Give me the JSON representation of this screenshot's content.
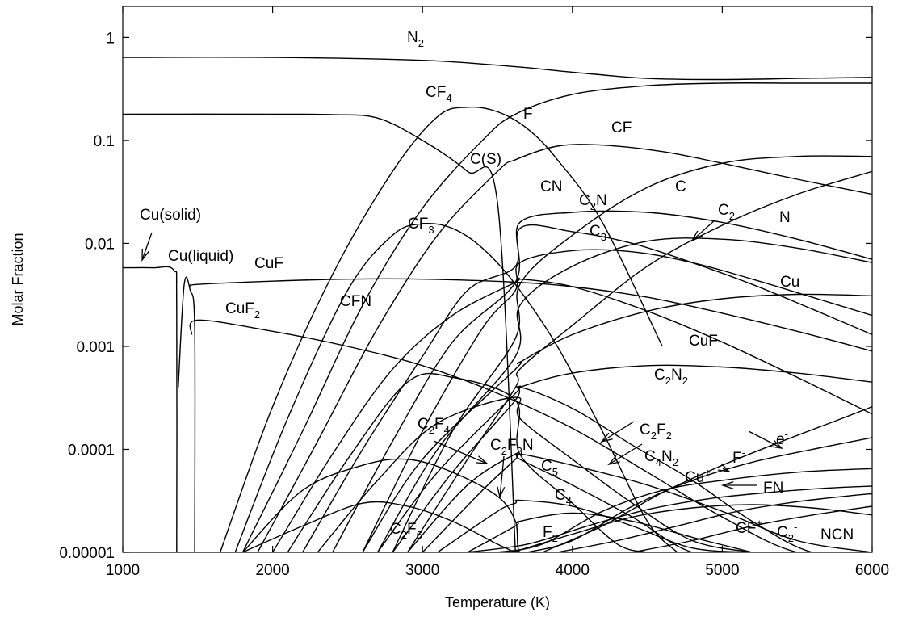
{
  "chart_data": {
    "type": "line",
    "title": "",
    "xlabel": "Temperature (K)",
    "ylabel": "Molar Fraction",
    "xscale": "linear",
    "yscale": "log",
    "xlim": [
      1000,
      6000
    ],
    "ylim": [
      1e-05,
      2
    ],
    "grid": false,
    "legend": "none (curves labelled directly)",
    "x_ticks": [
      1000,
      2000,
      3000,
      4000,
      5000,
      6000
    ],
    "x_tick_labels": [
      "1000",
      "2000",
      "3000",
      "4000",
      "5000",
      "6000"
    ],
    "y_ticks": [
      1e-05,
      0.0001,
      0.001,
      0.01,
      0.1,
      1
    ],
    "y_tick_labels": [
      "0.00001",
      "0.0001",
      "0.001",
      "0.01",
      "0.1",
      "1"
    ],
    "labels": [
      {
        "text": "N",
        "sub": "2"
      },
      {
        "text": "CF",
        "sub": "4"
      },
      {
        "text": "F"
      },
      {
        "text": "CF"
      },
      {
        "text": "C(S)"
      },
      {
        "text": "CN"
      },
      {
        "text": "C",
        "sub": "2",
        "after": "N"
      },
      {
        "text": "C"
      },
      {
        "text": "C",
        "sub": "2"
      },
      {
        "text": "N"
      },
      {
        "text": "CF",
        "sub": "3"
      },
      {
        "text": "C",
        "sub": "3"
      },
      {
        "text": "Cu(solid)"
      },
      {
        "text": "Cu(liquid)"
      },
      {
        "text": "CuF"
      },
      {
        "text": "CuF",
        "sub": "2"
      },
      {
        "text": "CFN"
      },
      {
        "text": "Cu"
      },
      {
        "text": "CuF"
      },
      {
        "text": "C",
        "sub": "2",
        "after": "N",
        "sub2": "2"
      },
      {
        "text": "C",
        "sub": "2",
        "after": "F",
        "sub2": "4"
      },
      {
        "text": "C",
        "sub": "2",
        "after": "F",
        "sub2": "2"
      },
      {
        "text": "C",
        "sub": "2",
        "after": "F",
        "sub2": "3",
        "after2": "N"
      },
      {
        "text": "C",
        "sub": "4",
        "after": "N",
        "sub2": "2"
      },
      {
        "text": "C",
        "sub": "5"
      },
      {
        "text": "Cu",
        "sup": "+"
      },
      {
        "text": "F",
        "sup": "-"
      },
      {
        "text": "e",
        "sup": "-"
      },
      {
        "text": "FN"
      },
      {
        "text": "C",
        "sub": "4"
      },
      {
        "text": "C",
        "sub": "2",
        "after": "F",
        "sub2": "6"
      },
      {
        "text": "F",
        "sub": "2"
      },
      {
        "text": "CF",
        "sup": "+"
      },
      {
        "text": "C",
        "sub": "2",
        "sup": "-"
      },
      {
        "text": "NCN"
      }
    ],
    "series": [
      {
        "label_index": 0,
        "x": [
          1000,
          2000,
          3000,
          3620,
          4000,
          4500,
          5000,
          5500,
          6000
        ],
        "y": [
          0.64,
          0.64,
          0.6,
          0.52,
          0.46,
          0.4,
          0.39,
          0.4,
          0.41
        ]
      },
      {
        "label_index": 1,
        "x": [
          1650,
          2000,
          2400,
          2800,
          3100,
          3300,
          3500,
          3700,
          3900,
          4200,
          4600
        ],
        "y": [
          1e-05,
          0.00026,
          0.005,
          0.05,
          0.17,
          0.21,
          0.19,
          0.13,
          0.065,
          0.016,
          0.001
        ]
      },
      {
        "label_index": 2,
        "x": [
          1800,
          2200,
          2600,
          3000,
          3400,
          3620,
          4000,
          4500,
          5000,
          5500,
          6000
        ],
        "y": [
          1e-05,
          0.00015,
          0.0025,
          0.022,
          0.1,
          0.18,
          0.28,
          0.34,
          0.36,
          0.36,
          0.36
        ]
      },
      {
        "label_index": 3,
        "x": [
          1900,
          2300,
          2700,
          3100,
          3500,
          3620,
          3900,
          4200,
          4600,
          5000,
          5500,
          6000
        ],
        "y": [
          1e-05,
          0.00012,
          0.0015,
          0.012,
          0.05,
          0.065,
          0.088,
          0.09,
          0.078,
          0.06,
          0.042,
          0.03
        ]
      },
      {
        "label_index": 4,
        "x": [
          1000,
          2000,
          2400,
          2700,
          3000,
          3300,
          3500,
          3620
        ],
        "y": [
          0.18,
          0.18,
          0.178,
          0.165,
          0.1,
          0.05,
          0.025,
          1e-05
        ]
      },
      {
        "label_index": 5,
        "x": [
          2200,
          2600,
          3000,
          3300,
          3620,
          3650,
          4000,
          4500,
          5000,
          5500,
          6000
        ],
        "y": [
          1e-05,
          0.0001,
          0.0008,
          0.0035,
          0.006,
          0.016,
          0.02,
          0.02,
          0.016,
          0.011,
          0.007
        ]
      },
      {
        "label_index": 6,
        "x": [
          2400,
          2800,
          3200,
          3620,
          3650,
          4000,
          4400,
          4800,
          5200,
          5600,
          6000
        ],
        "y": [
          1e-05,
          0.00012,
          0.0011,
          0.0042,
          0.014,
          0.013,
          0.01,
          0.0065,
          0.004,
          0.0023,
          0.0013
        ]
      },
      {
        "label_index": 7,
        "x": [
          2800,
          3200,
          3620,
          3650,
          4000,
          4500,
          5000,
          5500,
          6000
        ],
        "y": [
          1e-05,
          0.00015,
          0.0012,
          0.004,
          0.012,
          0.035,
          0.06,
          0.07,
          0.07
        ]
      },
      {
        "label_index": 8,
        "x": [
          2700,
          3100,
          3620,
          3650,
          4000,
          4500,
          5000,
          5500,
          6000
        ],
        "y": [
          1e-05,
          0.0001,
          0.0008,
          0.0025,
          0.006,
          0.0105,
          0.011,
          0.009,
          0.0065
        ]
      },
      {
        "label_index": 9,
        "x": [
          2900,
          3300,
          3620,
          3650,
          4000,
          4500,
          5000,
          5500,
          6000
        ],
        "y": [
          1e-05,
          8e-05,
          0.0004,
          0.0006,
          0.0016,
          0.006,
          0.015,
          0.03,
          0.05
        ]
      },
      {
        "label_index": 10,
        "x": [
          1750,
          2100,
          2500,
          2800,
          3000,
          3200,
          3400,
          3620,
          3900,
          4200,
          4500,
          4700
        ],
        "y": [
          1e-05,
          0.0002,
          0.0035,
          0.012,
          0.0155,
          0.014,
          0.009,
          0.004,
          0.001,
          0.00015,
          2e-05,
          1e-05
        ]
      },
      {
        "label_index": 11,
        "x": [
          2600,
          3000,
          3400,
          3620,
          3650,
          4000,
          4400,
          4800,
          5200,
          5600,
          6000
        ],
        "y": [
          1e-05,
          0.00015,
          0.0015,
          0.0035,
          0.0065,
          0.0085,
          0.0083,
          0.0065,
          0.0045,
          0.003,
          0.002
        ]
      },
      {
        "label_index": 12,
        "x": [
          1000,
          1200,
          1340,
          1360,
          1360
        ],
        "y": [
          0.0058,
          0.0058,
          0.0055,
          0.0025,
          1e-05
        ]
      },
      {
        "label_index": 13,
        "x": [
          1370,
          1410,
          1450,
          1480,
          1480
        ],
        "y": [
          0.0004,
          0.004,
          0.0035,
          0.0015,
          1e-05
        ]
      },
      {
        "label_index": 14,
        "x": [
          1450,
          1500,
          2000,
          2500,
          3000,
          3620,
          4000,
          4500,
          5000,
          5500,
          6000
        ],
        "y": [
          0.0038,
          0.004,
          0.0043,
          0.0045,
          0.0045,
          0.0042,
          0.0038,
          0.003,
          0.0021,
          0.0014,
          0.0009
        ]
      },
      {
        "label_index": 15,
        "x": [
          1460,
          1500,
          2000,
          2500,
          3000,
          3500,
          4000,
          4500,
          5000,
          5500,
          6000
        ],
        "y": [
          0.0013,
          0.0018,
          0.0014,
          0.001,
          0.00065,
          0.00035,
          0.00016,
          6e-05,
          2.2e-05,
          1e-05,
          1e-05
        ]
      },
      {
        "label_index": 16,
        "x": [
          2000,
          2400,
          2800,
          3200,
          3620,
          3650,
          4000,
          4500,
          5000,
          5500,
          6000
        ],
        "y": [
          1e-05,
          9e-05,
          0.0006,
          0.002,
          0.0042,
          0.0045,
          0.0038,
          0.0022,
          0.0011,
          0.0005,
          0.00022
        ]
      },
      {
        "label_index": 17,
        "x": [
          2600,
          3000,
          3620,
          3650,
          4000,
          4500,
          5000,
          5500,
          6000
        ],
        "y": [
          1e-05,
          8e-05,
          0.0006,
          0.0007,
          0.0013,
          0.0022,
          0.0029,
          0.0032,
          0.0031
        ]
      },
      {
        "label_index": 18,
        "x": [
          2700,
          3100,
          3620,
          3650,
          4000,
          4500,
          5000,
          5500,
          6000
        ],
        "y": [
          1e-05,
          6e-05,
          0.00035,
          0.0004,
          0.00055,
          0.00065,
          0.00063,
          0.00055,
          0.00045
        ]
      },
      {
        "label_index": 19,
        "x": [
          2800,
          3200,
          3620,
          3650,
          4000,
          4400,
          4800,
          5200,
          5600,
          6000
        ],
        "y": [
          1e-05,
          6e-05,
          0.0003,
          0.0004,
          0.00025,
          0.00011,
          5e-05,
          2e-05,
          1e-05,
          1e-05
        ]
      },
      {
        "label_index": 20,
        "x": [
          2100,
          2500,
          2900,
          3200,
          3620,
          3650,
          4000,
          4300,
          4500
        ],
        "y": [
          1e-05,
          8e-05,
          0.00045,
          0.0005,
          0.0003,
          9e-05,
          3e-05,
          1.2e-05,
          1e-05
        ]
      },
      {
        "label_index": 21,
        "x": [
          2300,
          2700,
          3100,
          3620,
          3650,
          4000,
          4400,
          4800,
          5200
        ],
        "y": [
          1e-05,
          5e-05,
          0.00018,
          0.00032,
          0.0002,
          8e-05,
          3e-05,
          1.3e-05,
          1e-05
        ]
      },
      {
        "label_index": 22,
        "x": [
          1800,
          2200,
          2600,
          2900,
          3200,
          3500,
          3620,
          3650,
          3800
        ],
        "y": [
          1e-05,
          4e-05,
          7e-05,
          8e-05,
          6e-05,
          3.5e-05,
          2e-05,
          1e-05,
          1e-05
        ]
      },
      {
        "label_index": 23,
        "x": [
          3000,
          3400,
          3620,
          3650,
          4000,
          4500,
          5000,
          5500,
          6000
        ],
        "y": [
          1e-05,
          4e-05,
          8e-05,
          9e-05,
          7e-05,
          4.5e-05,
          2.5e-05,
          1.3e-05,
          1e-05
        ]
      },
      {
        "label_index": 24,
        "x": [
          2900,
          3300,
          3620,
          3650,
          4000,
          4400,
          4800,
          5200,
          5600
        ],
        "y": [
          1e-05,
          4.5e-05,
          9e-05,
          8e-05,
          4.5e-05,
          2.2e-05,
          1e-05,
          1e-05,
          1e-05
        ]
      },
      {
        "label_index": 25,
        "x": [
          3500,
          3800,
          4200,
          4600,
          5000,
          5500,
          6000
        ],
        "y": [
          1e-05,
          1.2e-05,
          2.5e-05,
          4e-05,
          5e-05,
          6e-05,
          6.5e-05
        ]
      },
      {
        "label_index": 26,
        "x": [
          3700,
          4000,
          4400,
          4800,
          5200,
          5600,
          6000
        ],
        "y": [
          1e-05,
          1.3e-05,
          2.8e-05,
          5e-05,
          7.5e-05,
          0.0001,
          0.00013
        ]
      },
      {
        "label_index": 27,
        "x": [
          3800,
          4200,
          4600,
          5000,
          5400,
          5800,
          6000
        ],
        "y": [
          1e-05,
          1.8e-05,
          3.8e-05,
          7e-05,
          0.00012,
          0.0002,
          0.00026
        ]
      },
      {
        "label_index": 28,
        "x": [
          3300,
          3700,
          4100,
          4500,
          4900,
          5300,
          5700,
          6000
        ],
        "y": [
          1e-05,
          1.2e-05,
          1.8e-05,
          2.6e-05,
          3.3e-05,
          3.8e-05,
          4.2e-05,
          4.4e-05
        ]
      },
      {
        "label_index": 29,
        "x": [
          3100,
          3500,
          3620,
          3650,
          4000,
          4400,
          4800,
          5200
        ],
        "y": [
          1e-05,
          2.5e-05,
          3e-05,
          3.2e-05,
          2.8e-05,
          1.8e-05,
          1.1e-05,
          1e-05
        ]
      },
      {
        "label_index": 30,
        "x": [
          1800,
          2200,
          2600,
          2900,
          3200,
          3500,
          3620,
          3650
        ],
        "y": [
          1e-05,
          1.8e-05,
          3e-05,
          2.8e-05,
          2e-05,
          1.2e-05,
          1e-05,
          1e-05
        ]
      },
      {
        "label_index": 31,
        "x": [
          3300,
          3620,
          3650,
          4000,
          4400,
          4800,
          5200
        ],
        "y": [
          1e-05,
          1.8e-05,
          2e-05,
          2.4e-05,
          2e-05,
          1.4e-05,
          1e-05
        ]
      },
      {
        "label_index": 32,
        "x": [
          3900,
          4300,
          4700,
          5100,
          5500,
          5900,
          6000
        ],
        "y": [
          1e-05,
          1.3e-05,
          1.8e-05,
          2.5e-05,
          3.1e-05,
          3.6e-05,
          3.7e-05
        ]
      },
      {
        "label_index": 33,
        "x": [
          4400,
          4800,
          5200,
          5600,
          6000
        ],
        "y": [
          1e-05,
          1.3e-05,
          1.8e-05,
          2.3e-05,
          2.8e-05
        ]
      },
      {
        "label_index": 34,
        "x": [
          3600,
          4000,
          4400,
          4800,
          5200,
          5600,
          6000
        ],
        "y": [
          1e-05,
          1.5e-05,
          2.2e-05,
          2.7e-05,
          2.9e-05,
          2.7e-05,
          2.3e-05
        ]
      }
    ]
  }
}
